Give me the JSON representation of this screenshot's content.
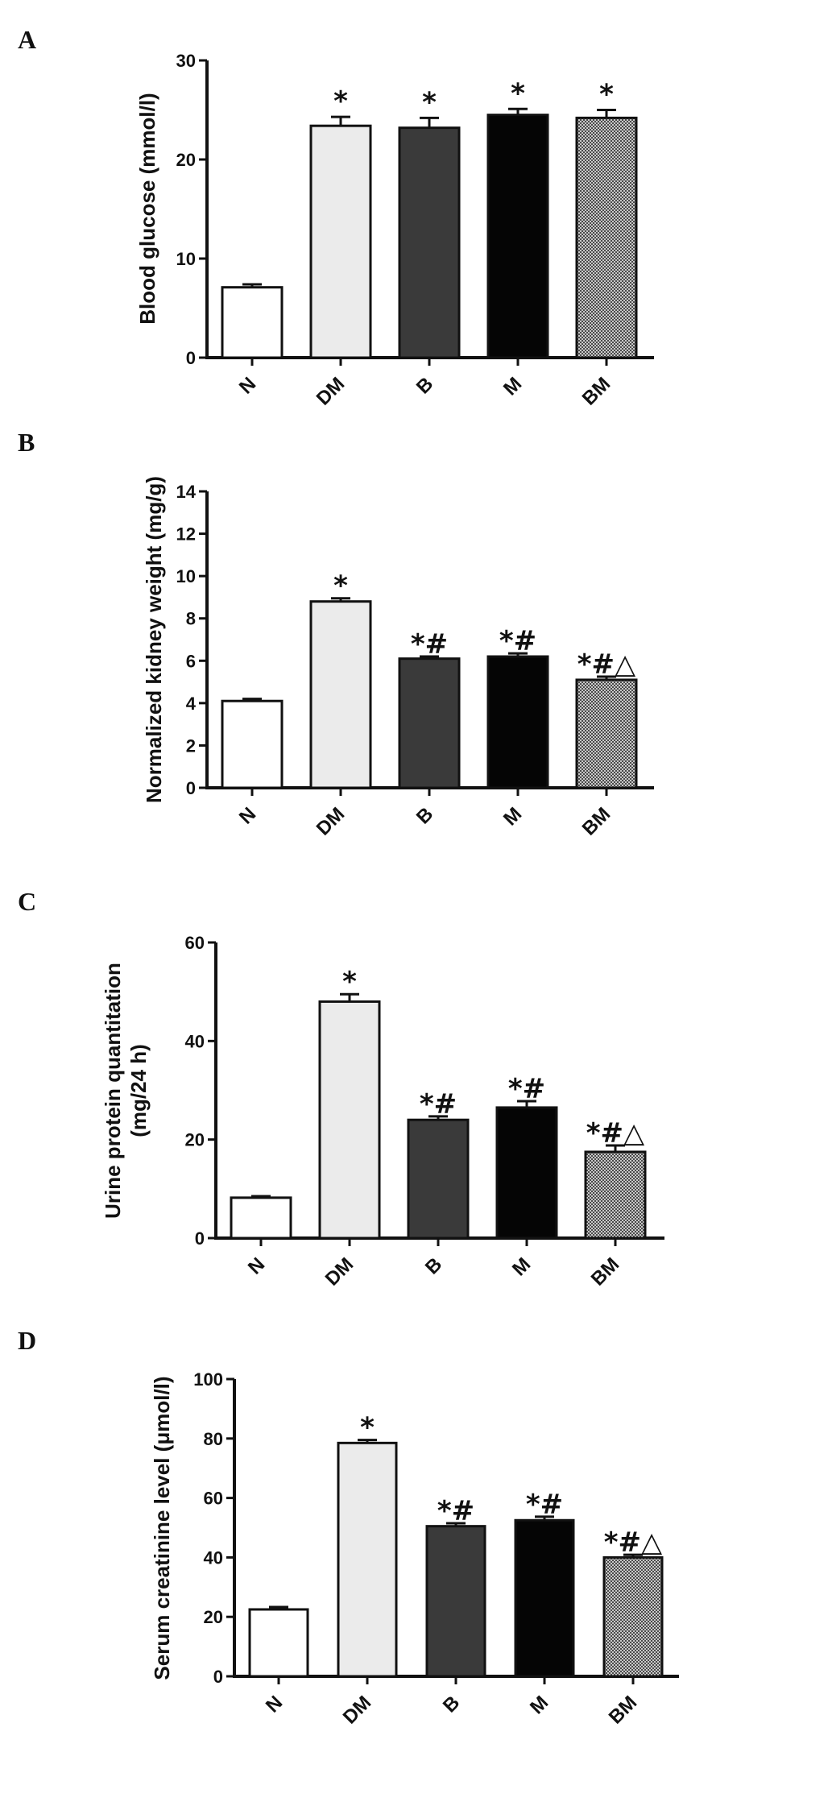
{
  "chart_data": [
    {
      "type": "bar",
      "panel": "A",
      "ylabel": [
        "Blood glucose (mmol/l)"
      ],
      "ylim": [
        0,
        30
      ],
      "yticks": [
        "0",
        "10",
        "20",
        "30"
      ],
      "categories": [
        "N",
        "DM",
        "B",
        "M",
        "BM"
      ],
      "values": [
        7.1,
        23.4,
        23.2,
        24.5,
        24.2
      ],
      "errors": [
        0.3,
        0.9,
        1.0,
        0.6,
        0.8
      ],
      "annotations": [
        "",
        "*",
        "*",
        "*",
        "*"
      ],
      "fills": [
        "#ffffff",
        "#ebebeb",
        "#3a3a3a",
        "#050505",
        "pattern"
      ]
    },
    {
      "type": "bar",
      "panel": "B",
      "ylabel": [
        "Normalized kidney weight (mg/g)"
      ],
      "ylim": [
        0,
        14
      ],
      "yticks": [
        "0",
        "2",
        "4",
        "6",
        "8",
        "10",
        "12",
        "14"
      ],
      "categories": [
        "N",
        "DM",
        "B",
        "M",
        "BM"
      ],
      "values": [
        4.1,
        8.8,
        6.1,
        6.2,
        5.1
      ],
      "errors": [
        0.1,
        0.15,
        0.1,
        0.15,
        0.15
      ],
      "annotations": [
        "",
        "*",
        "*#",
        "*#",
        "*#△"
      ],
      "fills": [
        "#ffffff",
        "#ebebeb",
        "#3a3a3a",
        "#050505",
        "pattern"
      ]
    },
    {
      "type": "bar",
      "panel": "C",
      "ylabel": [
        "Urine protein quantitation",
        "(mg/24 h)"
      ],
      "ylim": [
        0,
        60
      ],
      "yticks": [
        "0",
        "20",
        "40",
        "60"
      ],
      "categories": [
        "N",
        "DM",
        "B",
        "M",
        "BM"
      ],
      "values": [
        8.2,
        48.0,
        24.0,
        26.5,
        17.5
      ],
      "errors": [
        0.3,
        1.5,
        0.7,
        1.3,
        1.3
      ],
      "annotations": [
        "",
        "*",
        "*#",
        "*#",
        "*#△"
      ],
      "fills": [
        "#ffffff",
        "#ebebeb",
        "#3a3a3a",
        "#050505",
        "pattern"
      ]
    },
    {
      "type": "bar",
      "panel": "D",
      "ylabel": [
        "Serum creatinine level (μmol/l)"
      ],
      "ylim": [
        0,
        100
      ],
      "yticks": [
        "0",
        "20",
        "40",
        "60",
        "80",
        "100"
      ],
      "categories": [
        "N",
        "DM",
        "B",
        "M",
        "BM"
      ],
      "values": [
        22.5,
        78.5,
        50.5,
        52.5,
        40.0
      ],
      "errors": [
        0.8,
        1.0,
        1.0,
        1.2,
        0.9
      ],
      "annotations": [
        "",
        "*",
        "*#",
        "*#",
        "*#△"
      ],
      "fills": [
        "#ffffff",
        "#ebebeb",
        "#3a3a3a",
        "#050505",
        "pattern"
      ]
    }
  ]
}
